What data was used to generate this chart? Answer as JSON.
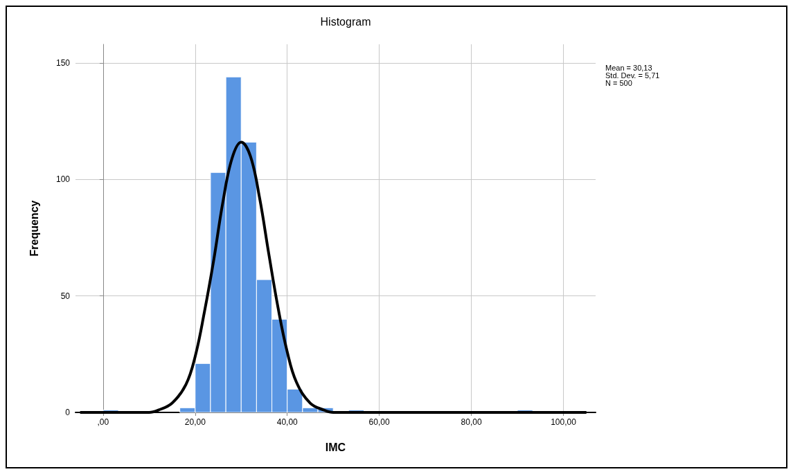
{
  "chart_data": {
    "type": "histogram",
    "title": "Histogram",
    "xlabel": "IMC",
    "ylabel": "Frequency",
    "bins": [
      0,
      3.33,
      6.67,
      10,
      13.33,
      16.67,
      20,
      23.33,
      26.67,
      30,
      33.33,
      36.67,
      40,
      43.33,
      46.67,
      50,
      53.33,
      56.67,
      60,
      63.33,
      66.67,
      70,
      73.33,
      76.67,
      80,
      83.33,
      86.67,
      90,
      93.33
    ],
    "values": [
      1,
      0,
      0,
      0,
      0,
      2,
      21,
      103,
      144,
      116,
      57,
      40,
      10,
      2,
      2,
      0,
      1,
      0,
      0,
      0,
      0,
      0,
      0,
      0,
      0,
      0,
      0,
      1
    ],
    "color": "#5a96e3",
    "series": [
      {
        "type": "line",
        "color": "#000000",
        "x": [
          -5,
          10,
          12,
          15,
          18,
          20,
          22,
          24,
          26,
          28,
          30,
          32,
          34,
          36,
          38,
          40,
          42,
          45,
          48,
          50,
          60,
          105
        ],
        "values": [
          0,
          0,
          1,
          4,
          12,
          24,
          43,
          65,
          90,
          109,
          116,
          110,
          92,
          68,
          45,
          26,
          13,
          4,
          1,
          0,
          0,
          0
        ]
      }
    ],
    "xlim": [
      -6,
      107
    ],
    "xticks": [
      {
        "value": 0,
        "label": ",00"
      },
      {
        "value": 20,
        "label": "20,00"
      },
      {
        "value": 40,
        "label": "40,00"
      },
      {
        "value": 60,
        "label": "60,00"
      },
      {
        "value": 80,
        "label": "80,00"
      },
      {
        "value": 100,
        "label": "100,00"
      }
    ],
    "ylim": [
      0,
      158
    ],
    "yticks": [
      0,
      50,
      100,
      150
    ],
    "grid": true,
    "annotations": [
      "Mean = 30,13\nStd. Dev. = 5,71\nN = 500"
    ]
  }
}
